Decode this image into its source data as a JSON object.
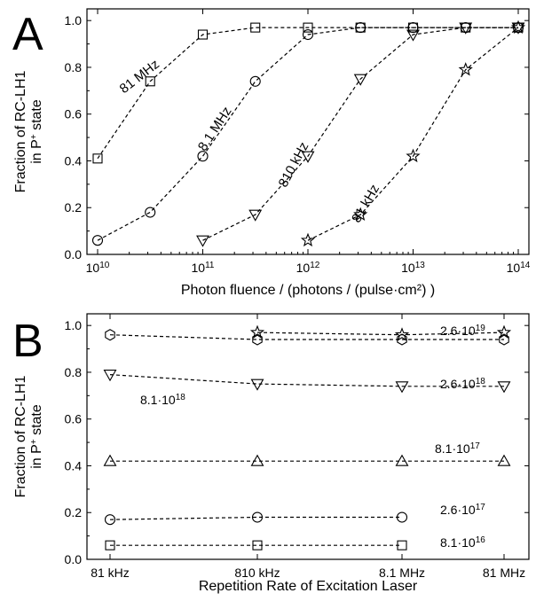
{
  "chart_data": [
    {
      "type": "scatter",
      "panel_label": "A",
      "xlabel": "Photon fluence / (photons / (pulse·cm²) )",
      "ylabel_line1": "Fraction of RC-LH1",
      "ylabel_line2_pre": "in P",
      "ylabel_line2_sup": "+",
      "ylabel_line2_post": " state",
      "x_scale": "log",
      "xlim": [
        10000000000.0,
        100000000000000.0
      ],
      "ylim": [
        0,
        1.05
      ],
      "x_ticks": [
        {
          "value": 10000000000.0,
          "base": "10",
          "exp": "10"
        },
        {
          "value": 100000000000.0,
          "base": "10",
          "exp": "11"
        },
        {
          "value": 1000000000000.0,
          "base": "10",
          "exp": "12"
        },
        {
          "value": 10000000000000.0,
          "base": "10",
          "exp": "13"
        },
        {
          "value": 100000000000000.0,
          "base": "10",
          "exp": "14"
        }
      ],
      "y_ticks": [
        "0.0",
        "0.2",
        "0.4",
        "0.6",
        "0.8",
        "1.0"
      ],
      "grid": false,
      "series": [
        {
          "name": "81 MHz",
          "marker": "square",
          "x": [
            10000000000.0,
            31600000000.0,
            100000000000.0,
            316000000000.0,
            1000000000000.0,
            3160000000000.0,
            10000000000000.0,
            31600000000000.0,
            100000000000000.0
          ],
          "y": [
            0.41,
            0.74,
            0.94,
            0.97,
            0.97,
            0.97,
            0.97,
            0.97,
            0.97
          ]
        },
        {
          "name": "8.1 MHz",
          "marker": "circle",
          "x": [
            10000000000.0,
            31600000000.0,
            100000000000.0,
            316000000000.0,
            1000000000000.0,
            3160000000000.0,
            10000000000000.0,
            31600000000000.0,
            100000000000000.0
          ],
          "y": [
            0.06,
            0.18,
            0.42,
            0.74,
            0.94,
            0.97,
            0.97,
            0.97,
            0.97
          ]
        },
        {
          "name": "810 kHz",
          "marker": "triangle-down",
          "x": [
            100000000000.0,
            316000000000.0,
            1000000000000.0,
            3160000000000.0,
            10000000000000.0,
            31600000000000.0,
            100000000000000.0
          ],
          "y": [
            0.06,
            0.17,
            0.42,
            0.75,
            0.94,
            0.97,
            0.97
          ]
        },
        {
          "name": "81 kHz",
          "marker": "star",
          "x": [
            1000000000000.0,
            3160000000000.0,
            10000000000000.0,
            31600000000000.0,
            100000000000000.0
          ],
          "y": [
            0.06,
            0.17,
            0.42,
            0.79,
            0.97
          ]
        }
      ]
    },
    {
      "type": "scatter",
      "panel_label": "B",
      "xlabel": "Repetition Rate of Excitation Laser",
      "ylabel_line1": "Fraction of RC-LH1",
      "ylabel_line2_pre": "in P",
      "ylabel_line2_sup": "+",
      "ylabel_line2_post": " state",
      "categories": [
        "81 kHz",
        "810 kHz",
        "8.1 MHz",
        "81 MHz"
      ],
      "ylim": [
        0,
        1.05
      ],
      "y_ticks": [
        "0.0",
        "0.2",
        "0.4",
        "0.6",
        "0.8",
        "1.0"
      ],
      "grid": false,
      "series": [
        {
          "name_pre": "8.1·10",
          "name_sup": "18",
          "marker": "hexagon",
          "values": [
            0.96,
            0.94,
            0.94,
            0.94
          ]
        },
        {
          "name_pre": "2.6·10",
          "name_sup": "19",
          "marker": "star",
          "values": [
            null,
            0.97,
            0.96,
            0.97
          ]
        },
        {
          "name_pre": "2.6·10",
          "name_sup": "18",
          "marker": "triangle-down",
          "values": [
            0.79,
            0.75,
            0.74,
            0.74
          ]
        },
        {
          "name_pre": "8.1·10",
          "name_sup": "17",
          "marker": "triangle-up",
          "values": [
            0.42,
            0.42,
            0.42,
            0.42
          ]
        },
        {
          "name_pre": "2.6·10",
          "name_sup": "17",
          "marker": "circle",
          "values": [
            0.17,
            0.18,
            0.18,
            null
          ]
        },
        {
          "name_pre": "8.1·10",
          "name_sup": "16",
          "marker": "square",
          "values": [
            0.06,
            0.06,
            0.06,
            null
          ]
        }
      ]
    }
  ]
}
